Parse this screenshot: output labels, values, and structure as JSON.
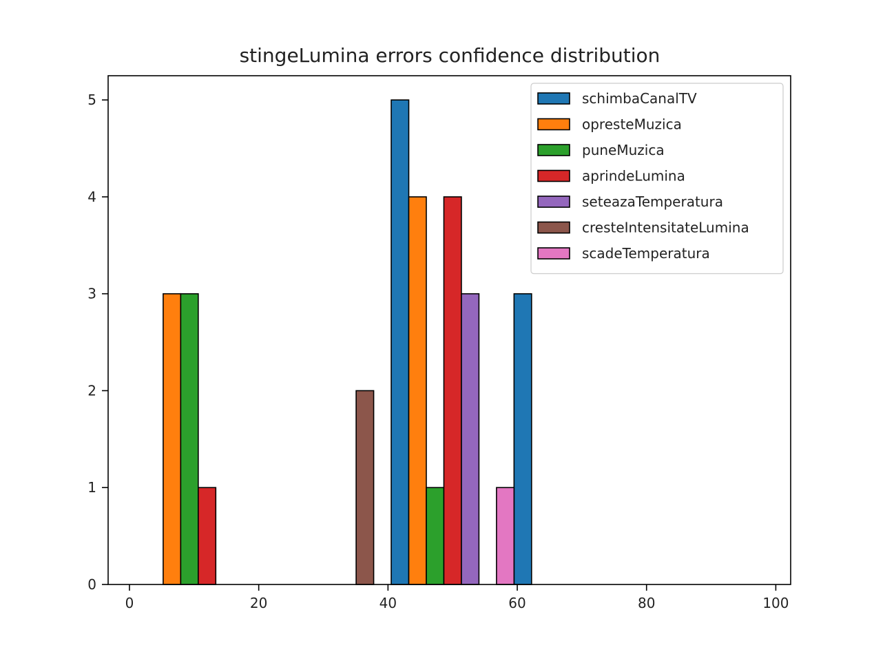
{
  "chart_data": {
    "type": "bar",
    "title": "stingeLumina errors confidence distribution",
    "xlabel": "",
    "ylabel": "",
    "xlim": [
      -3.3,
      102.3
    ],
    "ylim": [
      0,
      5.25
    ],
    "xticks": [
      0,
      20,
      40,
      60,
      80,
      100
    ],
    "yticks": [
      0,
      1,
      2,
      3,
      4,
      5
    ],
    "legend_position": "top-right",
    "grid": false,
    "bin_range": [
      2.5,
      97.5
    ],
    "bin_count": 5,
    "series": [
      {
        "name": "schimbaCanalTV",
        "color": "#1f77b4",
        "values": [
          0,
          0,
          5,
          3,
          0
        ]
      },
      {
        "name": "opresteMuzica",
        "color": "#ff7f0e",
        "values": [
          3,
          0,
          4,
          0,
          0
        ]
      },
      {
        "name": "puneMuzica",
        "color": "#2ca02c",
        "values": [
          3,
          0,
          1,
          0,
          0
        ]
      },
      {
        "name": "aprindeLumina",
        "color": "#d62728",
        "values": [
          1,
          0,
          4,
          0,
          0
        ]
      },
      {
        "name": "seteazaTemperatura",
        "color": "#9467bd",
        "values": [
          0,
          0,
          3,
          0,
          0
        ]
      },
      {
        "name": "cresteIntensitateLumina",
        "color": "#8c564b",
        "values": [
          0,
          2,
          0,
          0,
          0
        ]
      },
      {
        "name": "scadeTemperatura",
        "color": "#e377c2",
        "values": [
          0,
          0,
          1,
          0,
          0
        ]
      }
    ]
  }
}
